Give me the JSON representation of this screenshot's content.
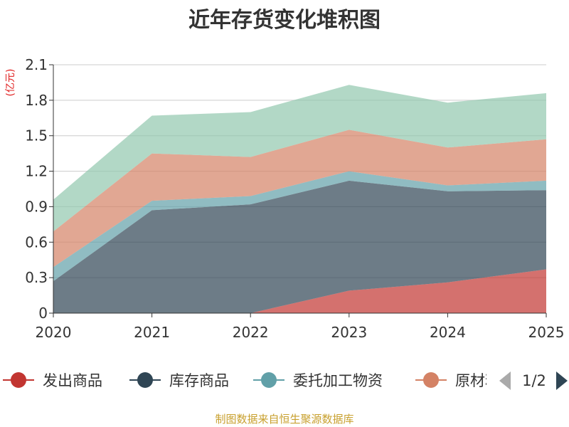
{
  "chart_data": {
    "type": "area",
    "stacked": true,
    "title": "近年存货变化堆积图",
    "ylabel": "(亿元)",
    "xlabel": "",
    "categories": [
      "2020",
      "2021",
      "2022",
      "2023",
      "2024",
      "2025"
    ],
    "yticks": [
      "0",
      "0.3",
      "0.6",
      "0.9",
      "1.2",
      "1.5",
      "1.8",
      "2.1"
    ],
    "ylim": [
      0,
      2.1
    ],
    "grid": true,
    "series": [
      {
        "name": "发出商品",
        "color": "#c23531",
        "values": [
          0,
          0,
          0,
          0.19,
          0.26,
          0.37
        ]
      },
      {
        "name": "库存商品",
        "color": "#2f4554",
        "values": [
          0.27,
          0.87,
          0.92,
          0.93,
          0.77,
          0.67
        ]
      },
      {
        "name": "委托加工物资",
        "color": "#61a0a8",
        "values": [
          0.12,
          0.08,
          0.07,
          0.08,
          0.05,
          0.08
        ]
      },
      {
        "name": "原材料",
        "color": "#d48265",
        "values": [
          0.3,
          0.4,
          0.33,
          0.35,
          0.32,
          0.35
        ]
      },
      {
        "name": "",
        "color": "#91c7ae",
        "values": [
          0.27,
          0.32,
          0.38,
          0.38,
          0.38,
          0.39
        ]
      }
    ],
    "legend": {
      "placement": "bottom",
      "visible_items": [
        "发出商品",
        "库存商品",
        "委托加工物资",
        "原材料"
      ],
      "page": "1/2"
    },
    "source": "制图数据来自恒生聚源数据库"
  }
}
